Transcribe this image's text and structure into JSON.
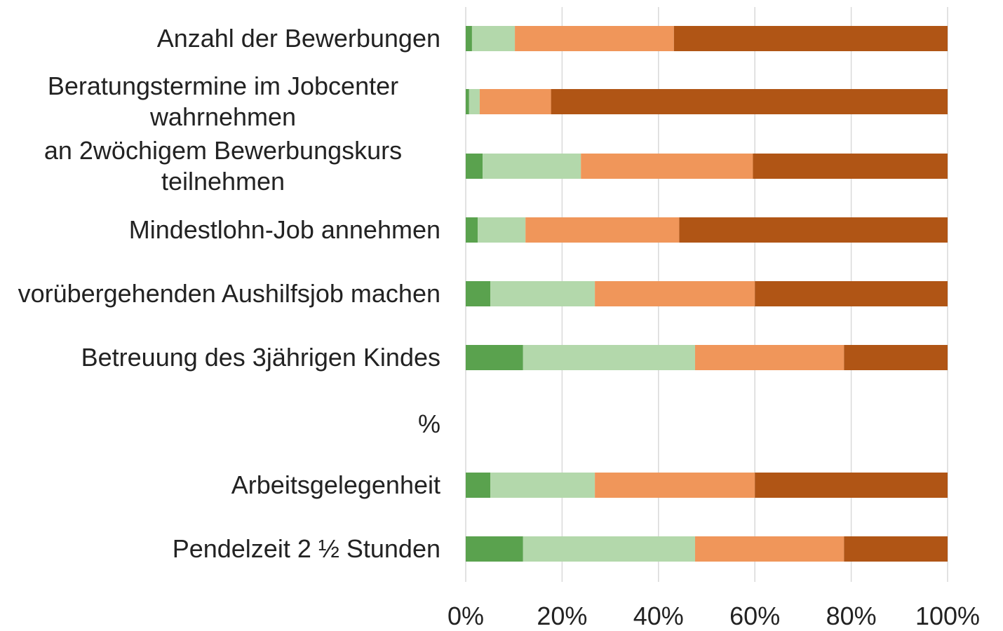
{
  "chart_data": {
    "type": "stacked_barh",
    "categories": [
      "Anzahl der Bewerbungen",
      "Beratungstermine im Jobcenter wahrnehmen",
      "an 2wöchigem Bewerbungskurs teilnehmen",
      "Mindestlohn-Job annehmen",
      "vorübergehenden Aushilfsjob machen",
      "Betreuung des 3jährigen Kindes",
      "%",
      "Arbeitsgelegenheit",
      "Pendelzeit  2 ½ Stunden"
    ],
    "series": [
      {
        "color": "#5aa24e",
        "values": [
          1.3,
          0.7,
          3.5,
          2.5,
          5.1,
          11.9,
          null,
          5.1,
          11.9
        ]
      },
      {
        "color": "#b3d8ab",
        "values": [
          8.9,
          2.2,
          20.4,
          9.9,
          21.7,
          35.7,
          null,
          21.7,
          35.7
        ]
      },
      {
        "color": "#f0965a",
        "values": [
          33,
          14.8,
          35.7,
          31.9,
          33.2,
          30.9,
          null,
          33.2,
          30.9
        ]
      },
      {
        "color": "#b05515",
        "values": [
          56.8,
          82.3,
          40.4,
          55.7,
          40.0,
          21.5,
          null,
          40.0,
          21.5
        ]
      }
    ],
    "xlim": [
      0,
      100
    ],
    "xticks": [
      {
        "value": 0,
        "label": "0%"
      },
      {
        "value": 20,
        "label": "20%"
      },
      {
        "value": 40,
        "label": "40%"
      },
      {
        "value": 60,
        "label": "60%"
      },
      {
        "value": 80,
        "label": "80%"
      },
      {
        "value": 100,
        "label": "100%"
      }
    ],
    "grid": true
  }
}
